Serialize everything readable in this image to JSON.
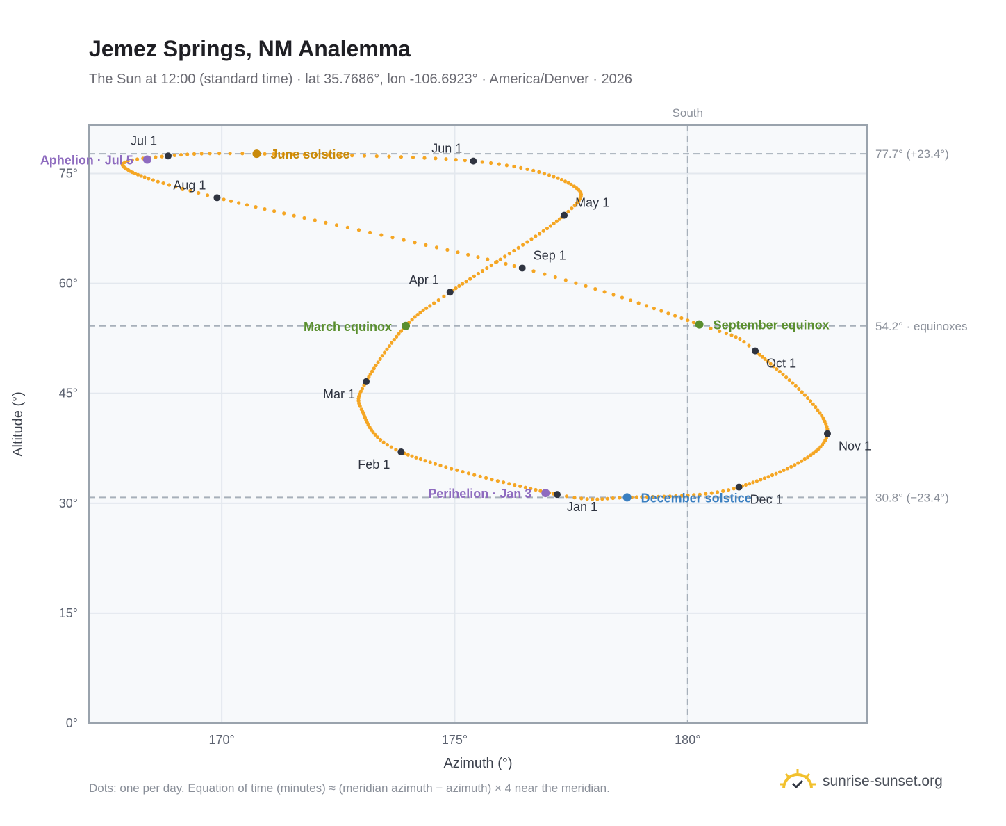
{
  "header": {
    "title": "Jemez Springs, NM Analemma",
    "subtitle": "The Sun at 12:00 (standard time) · lat 35.7686°, lon -106.6923° · America/Denver · 2026"
  },
  "footer": {
    "footnote": "Dots: one per day. Equation of time (minutes) ≈ (meridian azimuth − azimuth) × 4 near the meridian.",
    "brand": "sunrise-sunset.org",
    "brand_icon": "sun-icon"
  },
  "colors": {
    "path": "#f5a623",
    "month_dot": "#2f3440",
    "solstice_june": "#c98a0a",
    "equinox": "#5a8f2e",
    "perihelion_aphelion": "#8e6bbf",
    "solstice_december": "#3a7fc1",
    "plot_bg": "#f7f9fb",
    "grid": "#e3e8ee",
    "reference_line": "#a7b0ba"
  },
  "chart_data": {
    "type": "scatter",
    "xlabel": "Azimuth (°)",
    "ylabel": "Altitude (°)",
    "xlim": [
      167.15,
      183.85
    ],
    "ylim": [
      0,
      81.6
    ],
    "x_ticks": [
      {
        "value": 170,
        "label": "170°"
      },
      {
        "value": 175,
        "label": "175°"
      },
      {
        "value": 180,
        "label": "180°"
      }
    ],
    "y_ticks": [
      {
        "value": 0,
        "label": "0°"
      },
      {
        "value": 15,
        "label": "15°"
      },
      {
        "value": 30,
        "label": "30°"
      },
      {
        "value": 45,
        "label": "45°"
      },
      {
        "value": 60,
        "label": "60°"
      },
      {
        "value": 75,
        "label": "75°"
      }
    ],
    "grid": true,
    "meridian": {
      "azimuth": 180,
      "label": "South"
    },
    "reference_lines": [
      {
        "altitude": 77.7,
        "label": "77.7° (+23.4°)"
      },
      {
        "altitude": 54.2,
        "label": "54.2° · equinoxes"
      },
      {
        "altitude": 30.8,
        "label": "30.8° (−23.4°)"
      }
    ],
    "month_starts": [
      {
        "label": "Jan 1",
        "azimuth": 177.2,
        "altitude": 31.2
      },
      {
        "label": "Feb 1",
        "azimuth": 173.85,
        "altitude": 37.0
      },
      {
        "label": "Mar 1",
        "azimuth": 173.1,
        "altitude": 46.6
      },
      {
        "label": "Apr 1",
        "azimuth": 174.9,
        "altitude": 58.8
      },
      {
        "label": "May 1",
        "azimuth": 177.35,
        "altitude": 69.3
      },
      {
        "label": "Jun 1",
        "azimuth": 175.4,
        "altitude": 76.7
      },
      {
        "label": "Jul 1",
        "azimuth": 168.85,
        "altitude": 77.4
      },
      {
        "label": "Aug 1",
        "azimuth": 169.9,
        "altitude": 71.7
      },
      {
        "label": "Sep 1",
        "azimuth": 176.45,
        "altitude": 62.1
      },
      {
        "label": "Oct 1",
        "azimuth": 181.45,
        "altitude": 50.8
      },
      {
        "label": "Nov 1",
        "azimuth": 183.0,
        "altitude": 39.5
      },
      {
        "label": "Dec 1",
        "azimuth": 181.1,
        "altitude": 32.2
      }
    ],
    "events": [
      {
        "label": "June solstice",
        "azimuth": 170.75,
        "altitude": 77.7,
        "color": "#c98a0a"
      },
      {
        "label": "March equinox",
        "azimuth": 173.95,
        "altitude": 54.2,
        "color": "#5a8f2e"
      },
      {
        "label": "September equinox",
        "azimuth": 180.25,
        "altitude": 54.4,
        "color": "#5a8f2e"
      },
      {
        "label": "December solstice",
        "azimuth": 178.7,
        "altitude": 30.8,
        "color": "#3a7fc1"
      },
      {
        "label": "Perihelion · Jan 3",
        "azimuth": 176.95,
        "altitude": 31.4,
        "color": "#8e6bbf"
      },
      {
        "label": "Aphelion · Jul 5",
        "azimuth": 168.4,
        "altitude": 76.9,
        "color": "#8e6bbf"
      }
    ],
    "path_keypoints": [
      {
        "day": 1,
        "azimuth": 177.2,
        "altitude": 31.2
      },
      {
        "day": 32,
        "azimuth": 173.85,
        "altitude": 37.0
      },
      {
        "day": 50,
        "azimuth": 173.0,
        "altitude": 42.8
      },
      {
        "day": 60,
        "azimuth": 173.1,
        "altitude": 46.6
      },
      {
        "day": 79,
        "azimuth": 173.95,
        "altitude": 54.2
      },
      {
        "day": 91,
        "azimuth": 174.9,
        "altitude": 58.8
      },
      {
        "day": 121,
        "azimuth": 177.35,
        "altitude": 69.3
      },
      {
        "day": 135,
        "azimuth": 177.5,
        "altitude": 73.5
      },
      {
        "day": 152,
        "azimuth": 175.4,
        "altitude": 76.7
      },
      {
        "day": 172,
        "azimuth": 170.75,
        "altitude": 77.7
      },
      {
        "day": 182,
        "azimuth": 168.85,
        "altitude": 77.4
      },
      {
        "day": 193,
        "azimuth": 167.9,
        "altitude": 75.9
      },
      {
        "day": 213,
        "azimuth": 169.9,
        "altitude": 71.7
      },
      {
        "day": 244,
        "azimuth": 176.45,
        "altitude": 62.1
      },
      {
        "day": 265,
        "azimuth": 180.25,
        "altitude": 54.4
      },
      {
        "day": 274,
        "azimuth": 181.45,
        "altitude": 50.8
      },
      {
        "day": 305,
        "azimuth": 183.0,
        "altitude": 39.5
      },
      {
        "day": 335,
        "azimuth": 181.1,
        "altitude": 32.2
      },
      {
        "day": 355,
        "azimuth": 178.7,
        "altitude": 30.8
      },
      {
        "day": 366,
        "azimuth": 177.2,
        "altitude": 31.2
      }
    ]
  }
}
